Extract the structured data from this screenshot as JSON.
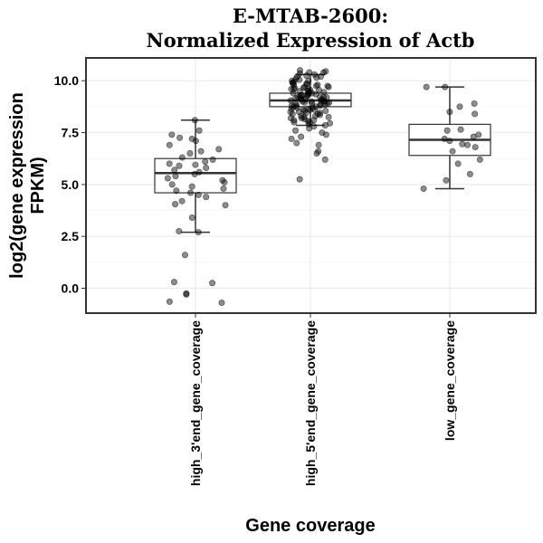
{
  "chart_data": {
    "type": "box",
    "title_line1": "E-MTAB-2600:",
    "title_line2": "Normalized Expression of Actb",
    "xlabel": "Gene coverage",
    "ylabel_line1": "log2(gene expression",
    "ylabel_line2": "FPKM)",
    "ylim": [
      -1.2,
      11.1
    ],
    "yticks": [
      "0.0",
      "2.5",
      "5.0",
      "7.5",
      "10.0"
    ],
    "grid": true,
    "categories": [
      "high_3'end_gene_coverage",
      "high_5'end_gene_coverage",
      "low_gene_coverage"
    ],
    "boxes": [
      {
        "category": "high_3'end_gene_coverage",
        "whisker_low": 2.7,
        "q1": 4.6,
        "median": 5.55,
        "q3": 6.25,
        "whisker_high": 8.1
      },
      {
        "category": "high_5'end_gene_coverage",
        "whisker_low": 7.85,
        "q1": 8.75,
        "median": 9.05,
        "q3": 9.4,
        "whisker_high": 10.3
      },
      {
        "category": "low_gene_coverage",
        "whisker_low": 4.8,
        "q1": 6.4,
        "median": 7.15,
        "q3": 7.9,
        "whisker_high": 9.7
      }
    ],
    "points": [
      {
        "category": "high_3'end_gene_coverage",
        "y": [
          8.1,
          7.6,
          7.4,
          7.25,
          7.2,
          7.1,
          6.9,
          6.7,
          6.6,
          6.5,
          6.3,
          6.2,
          6.1,
          6.0,
          5.95,
          5.9,
          5.8,
          5.7,
          5.6,
          5.5,
          5.4,
          5.3,
          5.2,
          5.1,
          5.0,
          4.9,
          4.8,
          4.7,
          4.6,
          4.5,
          4.4,
          4.2,
          4.05,
          4.0,
          3.4,
          2.75,
          2.7,
          1.6,
          0.3,
          0.25,
          -0.25,
          -0.3,
          -0.65,
          -0.7
        ]
      },
      {
        "category": "high_5'end_gene_coverage",
        "y": [
          10.5,
          10.45,
          10.4,
          10.35,
          10.3,
          10.25,
          10.2,
          10.15,
          10.1,
          10.05,
          10.0,
          9.95,
          9.9,
          9.85,
          9.8,
          9.75,
          9.7,
          9.65,
          9.6,
          9.55,
          9.5,
          9.45,
          9.4,
          9.35,
          9.3,
          9.25,
          9.2,
          9.15,
          9.1,
          9.05,
          9.0,
          8.95,
          8.9,
          8.85,
          8.8,
          8.75,
          8.7,
          8.65,
          8.6,
          8.55,
          8.5,
          8.45,
          8.4,
          8.35,
          8.3,
          8.25,
          8.2,
          8.15,
          8.1,
          8.05,
          8.0,
          7.95,
          7.9,
          7.85,
          7.8,
          7.7,
          7.6,
          7.5,
          7.4,
          7.3,
          7.2,
          7.0,
          6.9,
          6.6,
          6.5,
          6.2,
          5.25,
          10.4,
          10.2,
          10.0,
          9.8,
          9.6,
          9.4,
          9.2,
          9.0,
          8.8,
          8.6,
          8.4,
          8.2,
          8.0,
          9.9,
          9.7,
          9.5,
          9.3,
          9.1,
          8.9,
          8.7,
          8.5,
          8.3,
          8.1,
          9.85,
          9.65,
          9.45,
          9.25,
          9.05,
          8.85,
          8.65,
          8.45,
          8.25,
          9.75,
          9.55,
          9.35,
          9.15,
          8.95,
          8.75,
          8.55,
          9.6,
          9.4,
          9.2,
          9.0,
          8.8,
          8.6,
          9.3,
          9.1,
          8.9,
          9.2,
          9.0
        ]
      },
      {
        "category": "low_gene_coverage",
        "y": [
          9.7,
          9.7,
          8.9,
          8.75,
          8.5,
          8.4,
          7.65,
          7.6,
          7.4,
          7.3,
          7.2,
          7.1,
          6.95,
          6.9,
          6.8,
          6.6,
          6.2,
          6.0,
          5.5,
          5.2,
          4.8
        ]
      }
    ]
  }
}
